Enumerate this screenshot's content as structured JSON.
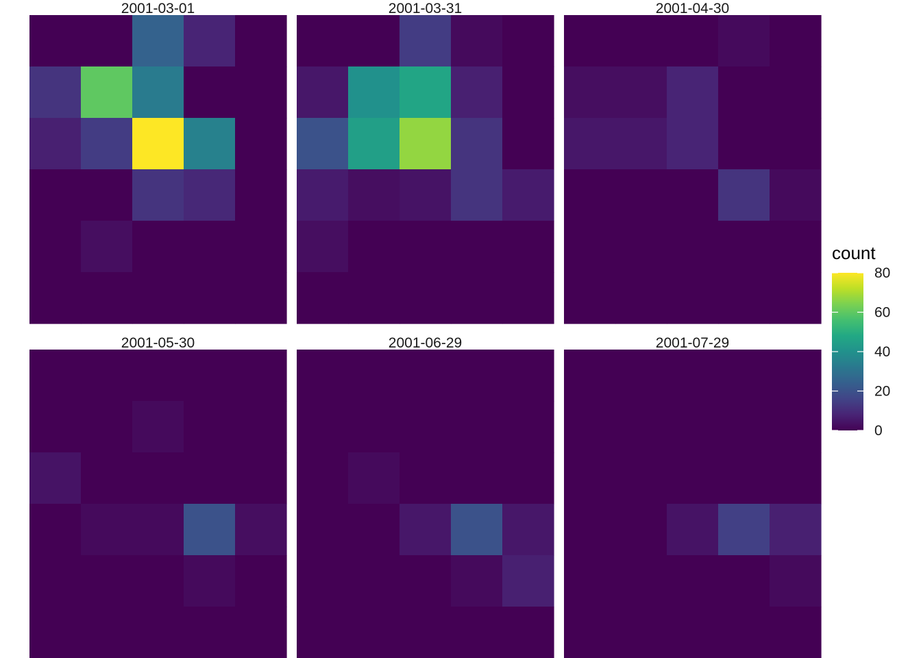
{
  "chart_data": {
    "type": "heatmap",
    "facet_by": "date",
    "nrows": 6,
    "ncols": 5,
    "colormap": "viridis",
    "color_range": [
      0,
      80
    ],
    "legend": {
      "title": "count",
      "placement": "right",
      "ticks": [
        "0",
        "20",
        "40",
        "60",
        "80"
      ],
      "tick_values": [
        0,
        20,
        40,
        60,
        80
      ]
    },
    "grid": false,
    "facets": [
      {
        "label": "2001-03-01",
        "values": [
          [
            0,
            0,
            25,
            8,
            0
          ],
          [
            12,
            60,
            33,
            0,
            0
          ],
          [
            7,
            14,
            80,
            35,
            0
          ],
          [
            0,
            0,
            12,
            9,
            0
          ],
          [
            0,
            3,
            0,
            0,
            0
          ],
          [
            0,
            0,
            0,
            0,
            0
          ]
        ]
      },
      {
        "label": "2001-03-31",
        "values": [
          [
            0,
            0,
            14,
            2,
            0
          ],
          [
            5,
            40,
            47,
            7,
            0
          ],
          [
            20,
            45,
            67,
            12,
            0
          ],
          [
            6,
            3,
            4,
            12,
            6
          ],
          [
            3,
            0,
            0,
            0,
            0
          ],
          [
            0,
            0,
            0,
            0,
            0
          ]
        ]
      },
      {
        "label": "2001-04-30",
        "values": [
          [
            0,
            0,
            0,
            2,
            0
          ],
          [
            3,
            3,
            8,
            0,
            0
          ],
          [
            5,
            5,
            8,
            0,
            0
          ],
          [
            0,
            0,
            0,
            12,
            2
          ],
          [
            0,
            0,
            0,
            0,
            0
          ],
          [
            0,
            0,
            0,
            0,
            0
          ]
        ]
      },
      {
        "label": "2001-05-30",
        "values": [
          [
            0,
            0,
            0,
            0,
            0
          ],
          [
            0,
            0,
            2,
            0,
            0
          ],
          [
            4,
            0,
            0,
            0,
            0
          ],
          [
            0,
            2,
            2,
            20,
            3
          ],
          [
            0,
            0,
            0,
            2,
            0
          ],
          [
            0,
            0,
            0,
            0,
            0
          ]
        ]
      },
      {
        "label": "2001-06-29",
        "values": [
          [
            0,
            0,
            0,
            0,
            0
          ],
          [
            0,
            0,
            0,
            0,
            0
          ],
          [
            0,
            2,
            0,
            0,
            0
          ],
          [
            0,
            0,
            5,
            20,
            5
          ],
          [
            0,
            0,
            0,
            2,
            7
          ],
          [
            0,
            0,
            0,
            0,
            0
          ]
        ]
      },
      {
        "label": "2001-07-29",
        "values": [
          [
            0,
            0,
            0,
            0,
            0
          ],
          [
            0,
            0,
            0,
            0,
            0
          ],
          [
            0,
            0,
            0,
            0,
            0
          ],
          [
            0,
            0,
            4,
            15,
            7
          ],
          [
            0,
            0,
            0,
            0,
            2
          ],
          [
            0,
            0,
            0,
            0,
            0
          ]
        ]
      }
    ]
  }
}
